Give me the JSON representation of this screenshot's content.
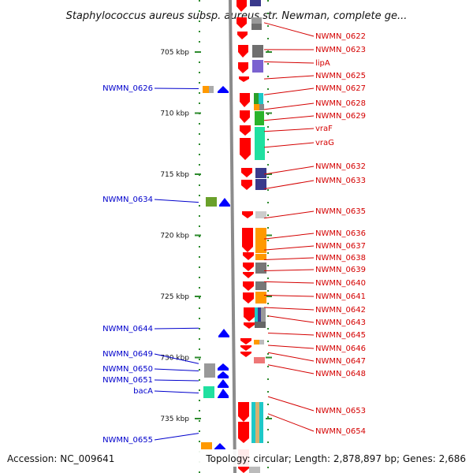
{
  "title": "Staphylococcus aureus subsp. aureus str. Newman, complete ge...",
  "footer": {
    "accession": "Accession: NC_009641",
    "topology": "Topology: circular; Length: 2,878,897 bp; Genes: 2,686"
  },
  "colors": {
    "right_label": "#d40000",
    "left_label": "#0000cc",
    "forward_gene": "#ff0000",
    "reverse_gene": "#0000ff",
    "backbone": "#999999",
    "tick": "#2e8b2e"
  },
  "scale": {
    "unit": "kbp",
    "ticks": [
      {
        "value": 705,
        "label": "705 kbp"
      },
      {
        "value": 710,
        "label": "710 kbp"
      },
      {
        "value": 715,
        "label": "715 kbp"
      },
      {
        "value": 720,
        "label": "720 kbp"
      },
      {
        "value": 725,
        "label": "725 kbp"
      },
      {
        "value": 730,
        "label": "730 kbp"
      },
      {
        "value": 735,
        "label": "735 kbp"
      }
    ]
  },
  "right_genes": [
    {
      "name": "NWMN_0622",
      "kbp": 702.6
    },
    {
      "name": "NWMN_0623",
      "kbp": 704.8
    },
    {
      "name": "lipA",
      "kbp": 705.8
    },
    {
      "name": "NWMN_0625",
      "kbp": 707.2
    },
    {
      "name": "NWMN_0627",
      "kbp": 708.5
    },
    {
      "name": "NWMN_0628",
      "kbp": 709.7
    },
    {
      "name": "NWMN_0629",
      "kbp": 710.6
    },
    {
      "name": "vraF",
      "kbp": 711.5
    },
    {
      "name": "vraG",
      "kbp": 712.8
    },
    {
      "name": "NWMN_0632",
      "kbp": 715.0
    },
    {
      "name": "NWMN_0633",
      "kbp": 716.2
    },
    {
      "name": "NWMN_0635",
      "kbp": 718.6
    },
    {
      "name": "NWMN_0636",
      "kbp": 720.3
    },
    {
      "name": "NWMN_0637",
      "kbp": 721.2
    },
    {
      "name": "NWMN_0638",
      "kbp": 722.0
    },
    {
      "name": "NWMN_0639",
      "kbp": 722.9
    },
    {
      "name": "NWMN_0640",
      "kbp": 723.8
    },
    {
      "name": "NWMN_0641",
      "kbp": 724.9
    },
    {
      "name": "NWMN_0642",
      "kbp": 725.9
    },
    {
      "name": "NWMN_0643",
      "kbp": 726.6
    },
    {
      "name": "NWMN_0645",
      "kbp": 728.0
    },
    {
      "name": "NWMN_0646",
      "kbp": 729.0
    },
    {
      "name": "NWMN_0647",
      "kbp": 729.6
    },
    {
      "name": "NWMN_0648",
      "kbp": 730.6
    },
    {
      "name": "NWMN_0653",
      "kbp": 733.2
    },
    {
      "name": "NWMN_0654",
      "kbp": 734.6
    }
  ],
  "left_genes": [
    {
      "name": "NWMN_0626",
      "kbp": 708.0
    },
    {
      "name": "NWMN_0634",
      "kbp": 717.3
    },
    {
      "name": "NWMN_0644",
      "kbp": 727.6
    },
    {
      "name": "NWMN_0649",
      "kbp": 730.5
    },
    {
      "name": "NWMN_0650",
      "kbp": 731.1
    },
    {
      "name": "NWMN_0651",
      "kbp": 731.9
    },
    {
      "name": "bacA",
      "kbp": 732.9
    },
    {
      "name": "NWMN_0655",
      "kbp": 736.2
    }
  ]
}
